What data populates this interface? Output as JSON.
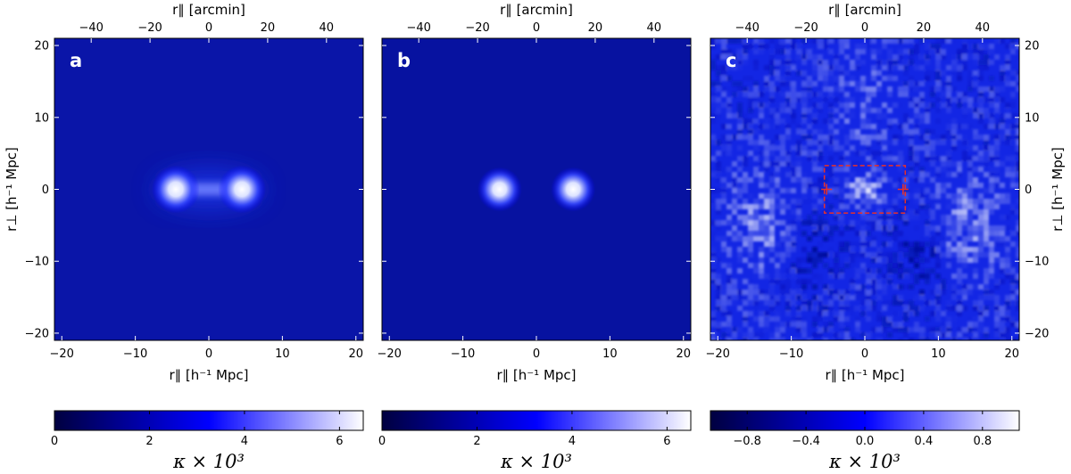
{
  "chart_data": [
    {
      "type": "heatmap",
      "panel_label": "a",
      "xlabel_bottom": "r∥ [h⁻¹ Mpc]",
      "xlabel_top": "r∥ [arcmin]",
      "ylabel_left": "r⊥ [h⁻¹ Mpc]",
      "xlim": [
        -21,
        21
      ],
      "ylim": [
        -21,
        21
      ],
      "xlim_top": [
        -52.5,
        52.5
      ],
      "xticks_bottom": [
        -20,
        -10,
        0,
        10,
        20
      ],
      "xticks_top": [
        -40,
        -20,
        0,
        20,
        40
      ],
      "yticks": [
        -20,
        -10,
        0,
        10,
        20
      ],
      "peaks": [
        {
          "x": -4.5,
          "y": 0,
          "value": 6.2
        },
        {
          "x": 4.5,
          "y": 0,
          "value": 6.2
        }
      ],
      "bridge_value": 3.2,
      "background_value": 0.4,
      "colorbar": {
        "label": "κ × 10³",
        "ticks": [
          0,
          2,
          4,
          6
        ],
        "range": [
          0,
          6.5
        ]
      }
    },
    {
      "type": "heatmap",
      "panel_label": "b",
      "xlabel_bottom": "r∥ [h⁻¹ Mpc]",
      "xlabel_top": "r∥ [arcmin]",
      "xlim": [
        -21,
        21
      ],
      "ylim": [
        -21,
        21
      ],
      "xlim_top": [
        -52.5,
        52.5
      ],
      "xticks_bottom": [
        -20,
        -10,
        0,
        10,
        20
      ],
      "xticks_top": [
        -40,
        -20,
        0,
        20,
        40
      ],
      "peaks": [
        {
          "x": -5,
          "y": 0,
          "value": 6.0
        },
        {
          "x": 5,
          "y": 0,
          "value": 6.0
        }
      ],
      "background_value": 0.3,
      "colorbar": {
        "label": "κ × 10³",
        "ticks": [
          0,
          2,
          4,
          6
        ],
        "range": [
          0,
          6.5
        ]
      }
    },
    {
      "type": "heatmap",
      "panel_label": "c",
      "xlabel_bottom": "r∥ [h⁻¹ Mpc]",
      "xlabel_top": "r∥ [arcmin]",
      "ylabel_right": "r⊥ [h⁻¹ Mpc]",
      "xlim": [
        -21,
        21
      ],
      "ylim": [
        -21,
        21
      ],
      "xlim_top": [
        -52.5,
        52.5
      ],
      "xticks_bottom": [
        -20,
        -10,
        0,
        10,
        20
      ],
      "xticks_top": [
        -40,
        -20,
        0,
        20,
        40
      ],
      "yticks": [
        -20,
        -10,
        0,
        10,
        20
      ],
      "peaks": [
        {
          "x": 0,
          "y": 0,
          "value": 1.0
        },
        {
          "x": -14,
          "y": -5,
          "value": 0.7
        },
        {
          "x": 14,
          "y": -5,
          "value": 0.7
        }
      ],
      "box": {
        "x0": -5.5,
        "x1": 5.5,
        "y0": -3.3,
        "y1": 3.3,
        "color": "#e8302a"
      },
      "markers": [
        {
          "x": -5.2,
          "y": 0
        },
        {
          "x": 5.2,
          "y": 0
        }
      ],
      "colorbar": {
        "label": "κ × 10³",
        "ticks": [
          -0.8,
          -0.4,
          0.0,
          0.4,
          0.8
        ],
        "tick_labels": [
          "−0.8",
          "−0.4",
          "0.0",
          "0.4",
          "0.8"
        ],
        "range": [
          -1.05,
          1.05
        ]
      }
    }
  ],
  "colors": {
    "low": "#000040",
    "mid": "#0000ff",
    "high": "#ffffff",
    "box": "#e8302a"
  }
}
